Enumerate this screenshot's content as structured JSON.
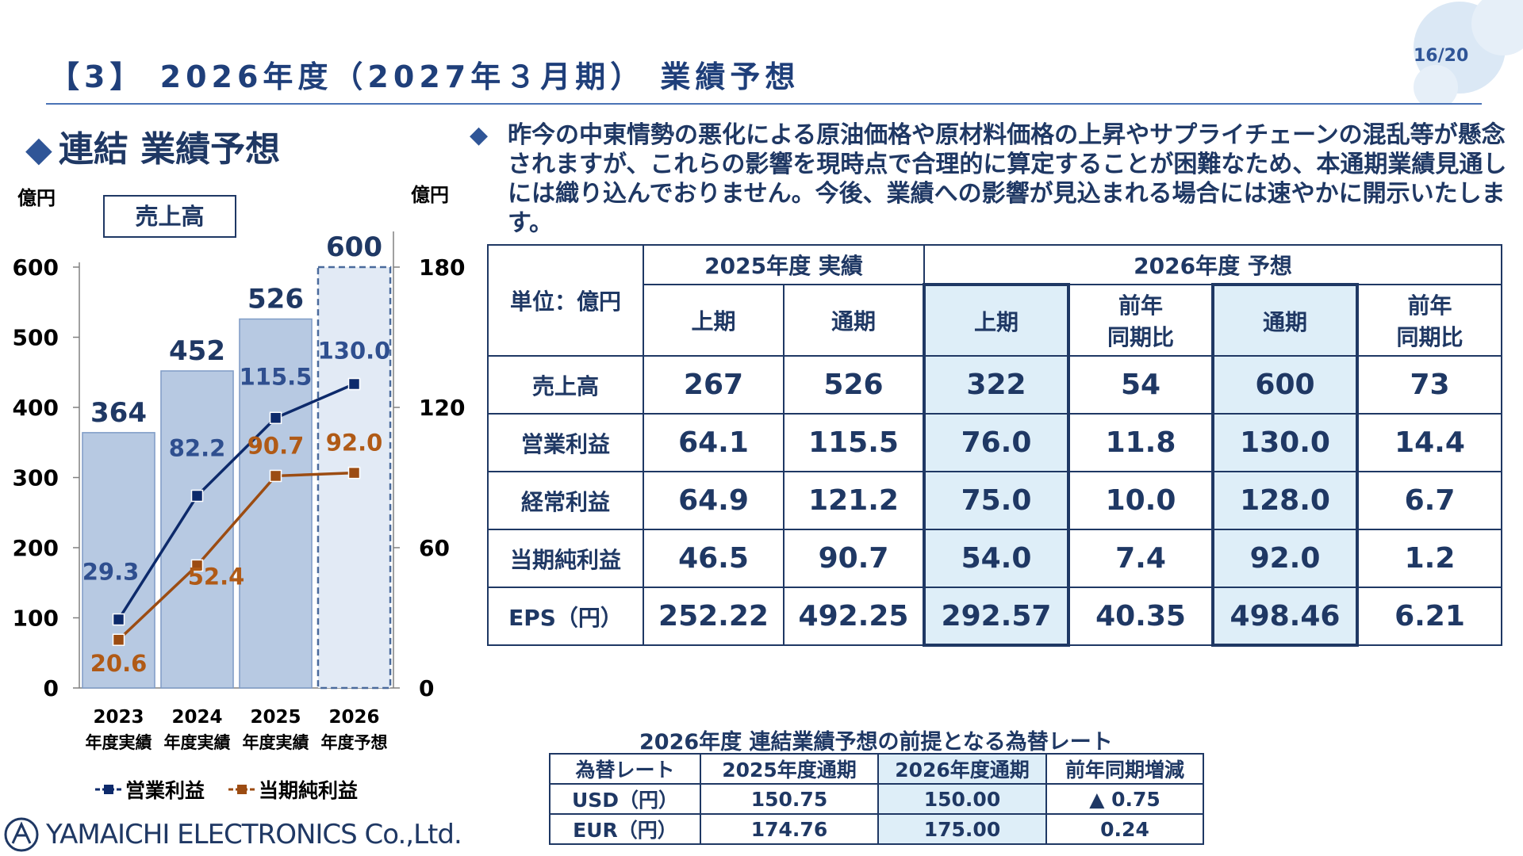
{
  "page_number": "16/20",
  "title": "【3】 2026年度（2027年３月期） 業績予想",
  "section_title": "連結 業績予想",
  "section_marker_icon": "diamond-icon",
  "notice": "昨今の中東情勢の悪化による原油価格や原材料価格の上昇やサプライチェーンの混乱等が懸念されますが、これらの影響を現時点で合理的に算定することが困難なため、本通期業績見通しには織り込んでおりません。今後、業績への影響が見込まれる場合には速やかに開示いたします。",
  "chart_data": {
    "type": "bar",
    "box_label": "売上高",
    "unit_left": "億円",
    "unit_right": "億円",
    "categories": [
      "2023",
      "2024",
      "2025",
      "2026"
    ],
    "category_sublabels": [
      "年度実績",
      "年度実績",
      "年度実績",
      "年度予想"
    ],
    "ylim_left": [
      0,
      600
    ],
    "yticks_left": [
      0,
      100,
      200,
      300,
      400,
      500,
      600
    ],
    "ylim_right": [
      0,
      180
    ],
    "yticks_right": [
      0,
      60,
      120,
      180
    ],
    "bar_series": {
      "name": "売上高",
      "values": [
        364,
        452,
        526,
        600
      ],
      "color": "#b7c9e2",
      "forecast_index": 3
    },
    "line_series": [
      {
        "name": "営業利益",
        "values": [
          29.3,
          82.2,
          115.5,
          130.0
        ],
        "labels": [
          "29.3",
          "82.2",
          "115.5",
          "130.0"
        ],
        "axis": "right",
        "color": "#0d2a6b",
        "label_color": "#2f4f8f"
      },
      {
        "name": "当期純利益",
        "values": [
          20.6,
          52.4,
          90.7,
          92.0
        ],
        "labels": [
          "20.6",
          "52.4",
          "90.7",
          "92.0"
        ],
        "axis": "right",
        "color": "#9c4c12",
        "label_color": "#b05a16"
      }
    ],
    "legend_placement": "bottom",
    "grid": false
  },
  "table": {
    "unit_label": "単位：億円",
    "group_headers": [
      "2025年度 実績",
      "2026年度 予想"
    ],
    "sub_headers": [
      "上期",
      "通期",
      "上期",
      "前年\n同期比",
      "通期",
      "前年\n同期比"
    ],
    "rows": [
      {
        "label": "売上高",
        "values": [
          "267",
          "526",
          "322",
          "54",
          "600",
          "73"
        ]
      },
      {
        "label": "営業利益",
        "values": [
          "64.1",
          "115.5",
          "76.0",
          "11.8",
          "130.0",
          "14.4"
        ]
      },
      {
        "label": "経常利益",
        "values": [
          "64.9",
          "121.2",
          "75.0",
          "10.0",
          "128.0",
          "6.7"
        ]
      },
      {
        "label": "当期純利益",
        "values": [
          "46.5",
          "90.7",
          "54.0",
          "7.4",
          "92.0",
          "1.2"
        ]
      },
      {
        "label": "EPS（円）",
        "values": [
          "252.22",
          "492.25",
          "292.57",
          "40.35",
          "498.46",
          "6.21"
        ]
      }
    ],
    "highlight_color": "#deeef8"
  },
  "fx": {
    "title": "2026年度 連結業績予想の前提となる為替レート",
    "headers": [
      "為替レート",
      "2025年度通期",
      "2026年度通期",
      "前年同期増減"
    ],
    "rows": [
      [
        "USD（円）",
        "150.75",
        "150.00",
        "▲ 0.75"
      ],
      [
        "EUR（円）",
        "174.76",
        "175.00",
        "0.24"
      ]
    ]
  },
  "logo_text": "YAMAICHI ELECTRONICS Co.,Ltd.",
  "logo_icon": "yamaichi-logo-icon"
}
